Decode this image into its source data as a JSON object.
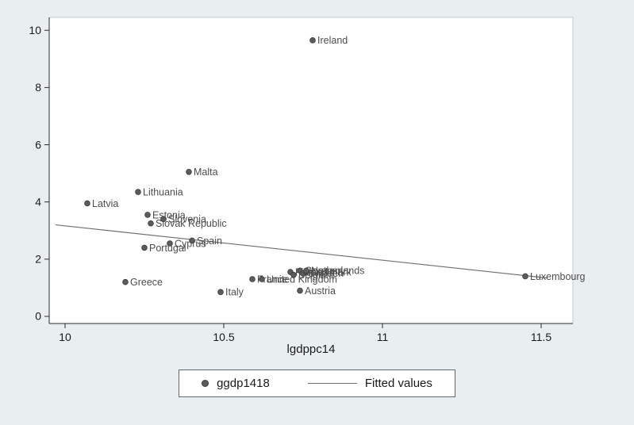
{
  "chart_data": {
    "type": "scatter",
    "title": "",
    "xlabel": "lgdppc14",
    "ylabel": "",
    "xlim": [
      9.95,
      11.6
    ],
    "ylim": [
      -0.25,
      10.45
    ],
    "xticks": [
      10,
      10.5,
      11,
      11.5
    ],
    "yticks": [
      0,
      2,
      4,
      6,
      8,
      10
    ],
    "grid": false,
    "colors": {
      "background": "#e9eef0",
      "plot_bg": "#ffffff",
      "plot_border": "#c5ced2",
      "axis": "#2b2b2b",
      "tick_text": "#1a1a1a",
      "marker": "#5c5c5c",
      "marker_edge": "#3d3d3d",
      "label": "#4d4d4d",
      "fit_line": "#6e6e6e"
    },
    "series": [
      {
        "name": "ggdp1418",
        "type": "scatter_labeled",
        "points": [
          {
            "label": "Latvia",
            "x": 10.07,
            "y": 3.95
          },
          {
            "label": "Greece",
            "x": 10.19,
            "y": 1.2
          },
          {
            "label": "Lithuania",
            "x": 10.23,
            "y": 4.35
          },
          {
            "label": "Portugal",
            "x": 10.25,
            "y": 2.4
          },
          {
            "label": "Estonia",
            "x": 10.26,
            "y": 3.55
          },
          {
            "label": "Slovak Republic",
            "x": 10.27,
            "y": 3.25
          },
          {
            "label": "Slovenia",
            "x": 10.31,
            "y": 3.4
          },
          {
            "label": "Cyprus",
            "x": 10.33,
            "y": 2.55
          },
          {
            "label": "Malta",
            "x": 10.39,
            "y": 5.05
          },
          {
            "label": "Spain",
            "x": 10.4,
            "y": 2.65
          },
          {
            "label": "Italy",
            "x": 10.49,
            "y": 0.85
          },
          {
            "label": "France",
            "x": 10.59,
            "y": 1.3
          },
          {
            "label": "United Kingdom",
            "x": 10.62,
            "y": 1.3
          },
          {
            "label": "Finland",
            "x": 10.71,
            "y": 1.55
          },
          {
            "label": "Belgium",
            "x": 10.72,
            "y": 1.45
          },
          {
            "label": "Germany",
            "x": 10.74,
            "y": 1.6
          },
          {
            "label": "Austria",
            "x": 10.74,
            "y": 0.9
          },
          {
            "label": "Sweden",
            "x": 10.75,
            "y": 1.5
          },
          {
            "label": "Denmark",
            "x": 10.76,
            "y": 1.55
          },
          {
            "label": "Netherlands",
            "x": 10.76,
            "y": 1.6
          },
          {
            "label": "Ireland",
            "x": 10.78,
            "y": 9.65
          },
          {
            "label": "Luxembourg",
            "x": 11.45,
            "y": 1.4
          }
        ]
      },
      {
        "name": "Fitted values",
        "type": "line",
        "x": [
          9.97,
          11.52
        ],
        "y": [
          3.2,
          1.34
        ]
      }
    ],
    "legend": {
      "position": "bottom",
      "items": [
        {
          "label": "ggdp1418",
          "marker": "dot"
        },
        {
          "label": "Fitted values",
          "marker": "line"
        }
      ]
    }
  }
}
